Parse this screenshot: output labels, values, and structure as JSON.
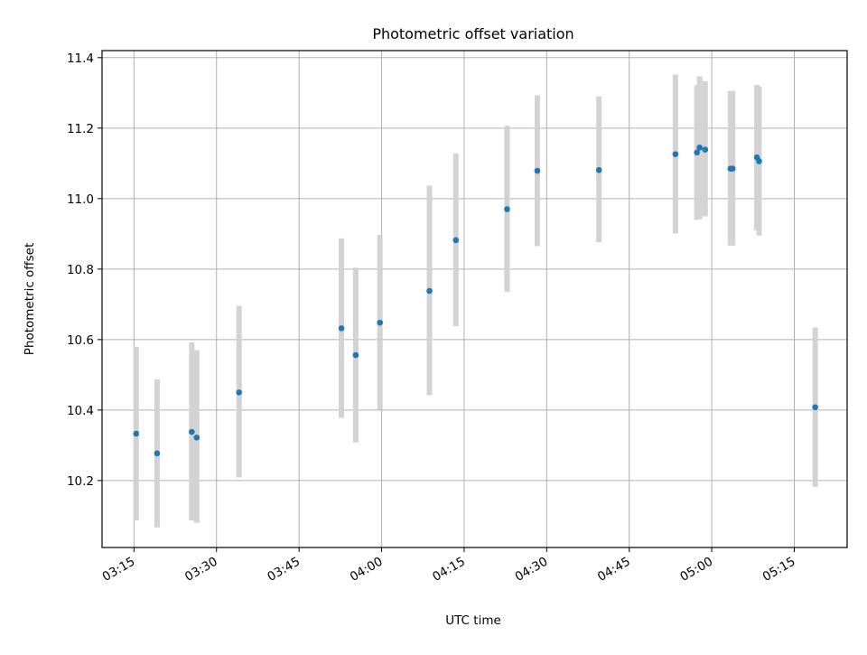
{
  "chart_data": {
    "type": "scatter",
    "title": "Photometric offset variation",
    "xlabel": "UTC time",
    "ylabel": "Photometric offset",
    "x_ticks": [
      "03:15",
      "03:30",
      "03:45",
      "04:00",
      "04:15",
      "04:30",
      "04:45",
      "05:00",
      "05:15"
    ],
    "y_ticks": [
      "10.2",
      "10.4",
      "10.6",
      "10.8",
      "11.0",
      "11.2",
      "11.4"
    ],
    "xlim": [
      "03:09:12",
      "05:24:36"
    ],
    "ylim": [
      10.01,
      11.42
    ],
    "grid": true,
    "colors": {
      "point": "#1f77b4",
      "errorbar": "#d3d3d3",
      "grid": "#b0b0b0"
    },
    "points": [
      {
        "x": "03:15:24",
        "y": 10.333,
        "lo": 10.087,
        "hi": 10.579
      },
      {
        "x": "03:19:12",
        "y": 10.277,
        "lo": 10.067,
        "hi": 10.487
      },
      {
        "x": "03:25:30",
        "y": 10.338,
        "lo": 10.087,
        "hi": 10.592
      },
      {
        "x": "03:26:24",
        "y": 10.322,
        "lo": 10.08,
        "hi": 10.57
      },
      {
        "x": "03:34:06",
        "y": 10.45,
        "lo": 10.209,
        "hi": 10.696
      },
      {
        "x": "03:52:42",
        "y": 10.632,
        "lo": 10.378,
        "hi": 10.887
      },
      {
        "x": "03:55:18",
        "y": 10.556,
        "lo": 10.308,
        "hi": 10.804
      },
      {
        "x": "03:59:42",
        "y": 10.648,
        "lo": 10.401,
        "hi": 10.897
      },
      {
        "x": "04:08:42",
        "y": 10.738,
        "lo": 10.442,
        "hi": 11.037
      },
      {
        "x": "04:13:30",
        "y": 10.882,
        "lo": 10.638,
        "hi": 11.128
      },
      {
        "x": "04:22:48",
        "y": 10.97,
        "lo": 10.735,
        "hi": 11.207
      },
      {
        "x": "04:28:18",
        "y": 11.079,
        "lo": 10.865,
        "hi": 11.293
      },
      {
        "x": "04:39:30",
        "y": 11.081,
        "lo": 10.876,
        "hi": 11.29
      },
      {
        "x": "04:53:24",
        "y": 11.126,
        "lo": 10.901,
        "hi": 11.352
      },
      {
        "x": "04:57:18",
        "y": 11.131,
        "lo": 10.94,
        "hi": 11.322
      },
      {
        "x": "04:57:48",
        "y": 11.145,
        "lo": 10.942,
        "hi": 11.347
      },
      {
        "x": "04:58:48",
        "y": 11.139,
        "lo": 10.95,
        "hi": 11.333
      },
      {
        "x": "05:03:24",
        "y": 11.085,
        "lo": 10.867,
        "hi": 11.306
      },
      {
        "x": "05:03:48",
        "y": 11.085,
        "lo": 10.867,
        "hi": 11.306
      },
      {
        "x": "05:08:12",
        "y": 11.117,
        "lo": 10.91,
        "hi": 11.323
      },
      {
        "x": "05:08:36",
        "y": 11.106,
        "lo": 10.895,
        "hi": 11.318
      },
      {
        "x": "05:18:48",
        "y": 10.408,
        "lo": 10.182,
        "hi": 10.634
      }
    ]
  }
}
